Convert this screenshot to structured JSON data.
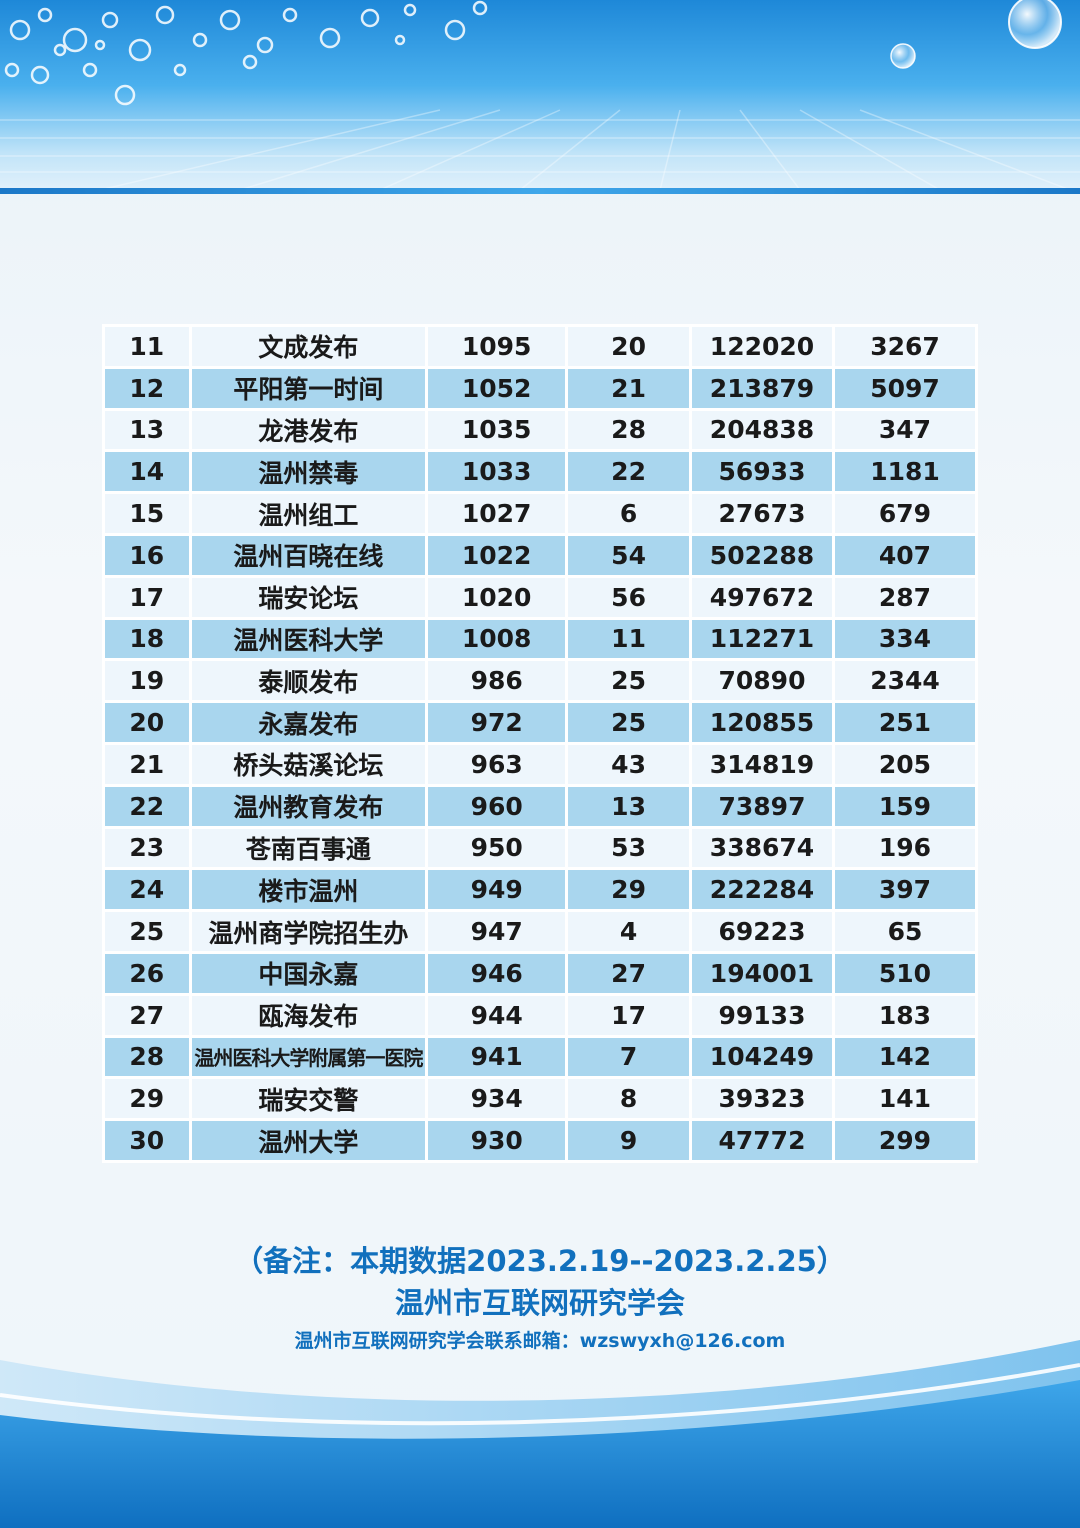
{
  "rows": [
    {
      "rank": "11",
      "name": "文成发布",
      "v1": "1095",
      "v2": "20",
      "v3": "122020",
      "v4": "3267"
    },
    {
      "rank": "12",
      "name": "平阳第一时间",
      "v1": "1052",
      "v2": "21",
      "v3": "213879",
      "v4": "5097"
    },
    {
      "rank": "13",
      "name": "龙港发布",
      "v1": "1035",
      "v2": "28",
      "v3": "204838",
      "v4": "347"
    },
    {
      "rank": "14",
      "name": "温州禁毒",
      "v1": "1033",
      "v2": "22",
      "v3": "56933",
      "v4": "1181"
    },
    {
      "rank": "15",
      "name": "温州组工",
      "v1": "1027",
      "v2": "6",
      "v3": "27673",
      "v4": "679"
    },
    {
      "rank": "16",
      "name": "温州百晓在线",
      "v1": "1022",
      "v2": "54",
      "v3": "502288",
      "v4": "407"
    },
    {
      "rank": "17",
      "name": "瑞安论坛",
      "v1": "1020",
      "v2": "56",
      "v3": "497672",
      "v4": "287"
    },
    {
      "rank": "18",
      "name": "温州医科大学",
      "v1": "1008",
      "v2": "11",
      "v3": "112271",
      "v4": "334"
    },
    {
      "rank": "19",
      "name": "泰顺发布",
      "v1": "986",
      "v2": "25",
      "v3": "70890",
      "v4": "2344"
    },
    {
      "rank": "20",
      "name": "永嘉发布",
      "v1": "972",
      "v2": "25",
      "v3": "120855",
      "v4": "251"
    },
    {
      "rank": "21",
      "name": "桥头菇溪论坛",
      "v1": "963",
      "v2": "43",
      "v3": "314819",
      "v4": "205"
    },
    {
      "rank": "22",
      "name": "温州教育发布",
      "v1": "960",
      "v2": "13",
      "v3": "73897",
      "v4": "159"
    },
    {
      "rank": "23",
      "name": "苍南百事通",
      "v1": "950",
      "v2": "53",
      "v3": "338674",
      "v4": "196"
    },
    {
      "rank": "24",
      "name": "楼市温州",
      "v1": "949",
      "v2": "29",
      "v3": "222284",
      "v4": "397"
    },
    {
      "rank": "25",
      "name": "温州商学院招生办",
      "v1": "947",
      "v2": "4",
      "v3": "69223",
      "v4": "65"
    },
    {
      "rank": "26",
      "name": "中国永嘉",
      "v1": "946",
      "v2": "27",
      "v3": "194001",
      "v4": "510"
    },
    {
      "rank": "27",
      "name": "瓯海发布",
      "v1": "944",
      "v2": "17",
      "v3": "99133",
      "v4": "183"
    },
    {
      "rank": "28",
      "name": "温州医科大学附属第一医院",
      "v1": "941",
      "v2": "7",
      "v3": "104249",
      "v4": "142"
    },
    {
      "rank": "29",
      "name": "瑞安交警",
      "v1": "934",
      "v2": "8",
      "v3": "39323",
      "v4": "141"
    },
    {
      "rank": "30",
      "name": "温州大学",
      "v1": "930",
      "v2": "9",
      "v3": "47772",
      "v4": "299"
    }
  ],
  "footer": {
    "note": "（备注：本期数据2023.2.19--2023.2.25）",
    "org": "温州市互联网研究学会",
    "contact": "温州市互联网研究学会联系邮箱：wzswyxh@126.com"
  },
  "colors": {
    "accent": "#1170bd",
    "row_alt": "#a9d6ee",
    "row_base": "#eef6fc"
  }
}
